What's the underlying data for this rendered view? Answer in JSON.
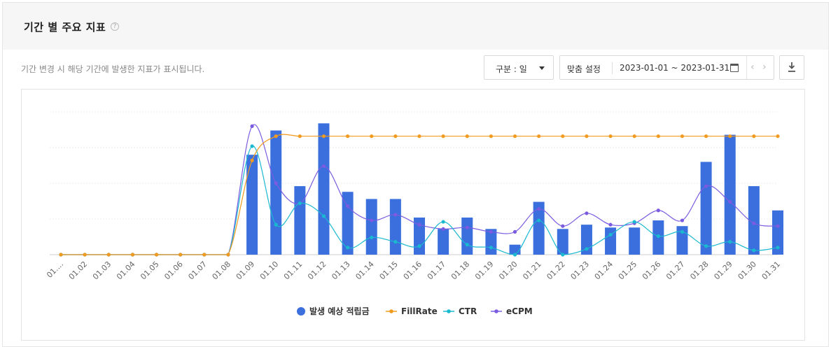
{
  "header": {
    "title": "기간 별 주요 지표",
    "help_icon": "?"
  },
  "description": "기간 변경 시 해당 기간에 발생한 지표가 표시됩니다.",
  "filter": {
    "select_value": "구분 : 일"
  },
  "date_range": {
    "label": "맞춤 설정",
    "value": "2023-01-01 ~ 2023-01-31"
  },
  "icons": {
    "prev": "‹",
    "next": "›",
    "calendar": "calendar-icon",
    "download": "download-icon"
  },
  "colors": {
    "bar": "#3a6fdd",
    "fillrate": "#f09a1f",
    "ctr": "#1ab9d0",
    "ecpm": "#7b5ce0"
  },
  "chart_data": {
    "type": "bar",
    "categories": [
      "01....",
      "01.02",
      "01.03",
      "01.04",
      "01.05",
      "01.06",
      "01.07",
      "01.08",
      "01.09",
      "01.10",
      "01.11",
      "01.12",
      "01.13",
      "01.14",
      "01.15",
      "01.16",
      "01.17",
      "01.18",
      "01.19",
      "01.20",
      "01.21",
      "01.22",
      "01.23",
      "01.24",
      "01.25",
      "01.26",
      "01.27",
      "01.28",
      "01.29",
      "01.30",
      "01.31"
    ],
    "series": [
      {
        "name": "발생 예상 적립금",
        "type": "bar",
        "values": [
          0,
          0,
          0,
          0,
          0,
          0,
          0,
          0,
          70,
          87,
          48,
          92,
          44,
          39,
          39,
          26,
          18,
          26,
          18,
          7,
          37,
          18,
          21,
          19,
          19,
          24,
          20,
          65,
          84,
          48,
          31
        ]
      },
      {
        "name": "FillRate",
        "type": "line",
        "values": [
          0,
          0,
          0,
          0,
          0,
          0,
          0,
          0,
          66,
          83,
          83,
          83,
          83,
          83,
          83,
          83,
          83,
          83,
          83,
          83,
          83,
          83,
          83,
          83,
          83,
          83,
          83,
          83,
          83,
          83,
          83
        ]
      },
      {
        "name": "CTR",
        "type": "line",
        "values": [
          0,
          0,
          0,
          0,
          0,
          0,
          0,
          0,
          76,
          21,
          36,
          27,
          5,
          12,
          9,
          6,
          23,
          7,
          5,
          0,
          24,
          0,
          4,
          14,
          23,
          13,
          16,
          6,
          9,
          3,
          5
        ]
      },
      {
        "name": "eCPM",
        "type": "line",
        "values": [
          0,
          0,
          0,
          0,
          0,
          0,
          0,
          0,
          90,
          50,
          36,
          62,
          34,
          24,
          28,
          21,
          18,
          19,
          16,
          16,
          32,
          20,
          29,
          21,
          22,
          31,
          24,
          48,
          37,
          22,
          20
        ]
      }
    ],
    "ylim": [
      0,
      100
    ],
    "grid": true,
    "legend": "bottom"
  }
}
